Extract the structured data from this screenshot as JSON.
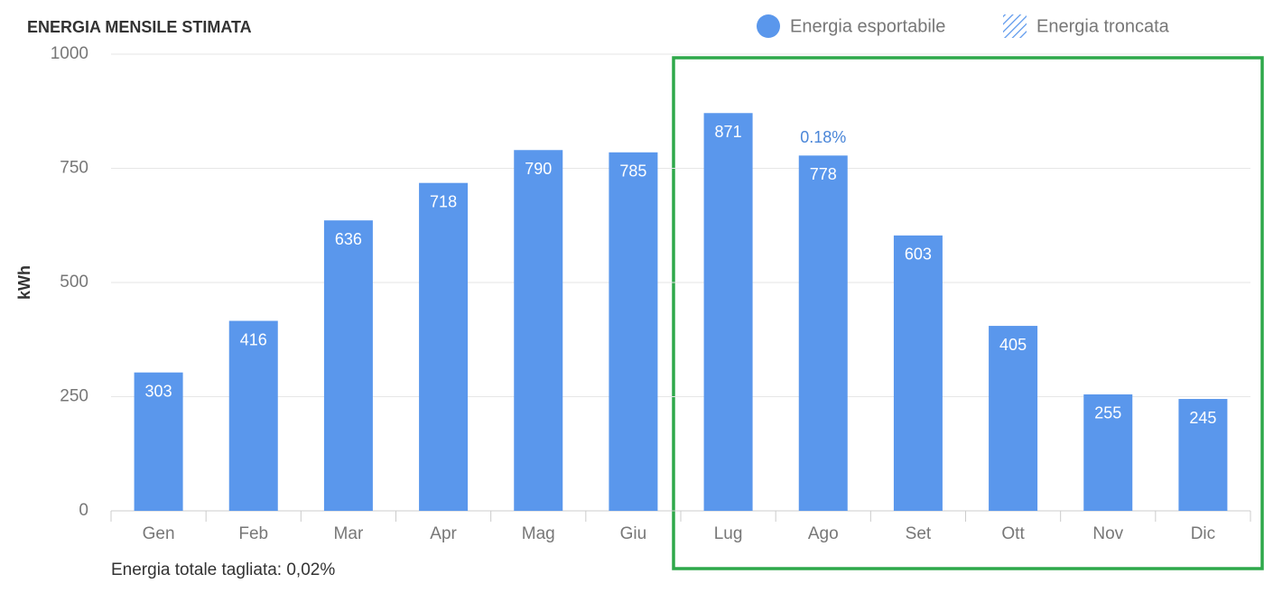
{
  "chart_data": {
    "type": "bar",
    "title": "ENERGIA MENSILE STIMATA",
    "y_label": "kWh",
    "categories": [
      "Gen",
      "Feb",
      "Mar",
      "Apr",
      "Mag",
      "Giu",
      "Lug",
      "Ago",
      "Set",
      "Ott",
      "Nov",
      "Dic"
    ],
    "series": [
      {
        "name": "Energia esportabile",
        "color": "#5a97ec",
        "values": [
          303,
          416,
          636,
          718,
          790,
          785,
          871,
          778,
          603,
          405,
          255,
          245
        ]
      }
    ],
    "truncated_legend": "Energia troncata",
    "annotations": [
      {
        "text": "0.18%",
        "category": "Ago"
      }
    ],
    "footnote": "Energia totale tagliata: 0,02%",
    "ylim": [
      0,
      1000
    ],
    "yticks": [
      0,
      250,
      500,
      750,
      1000
    ],
    "grid": true
  }
}
